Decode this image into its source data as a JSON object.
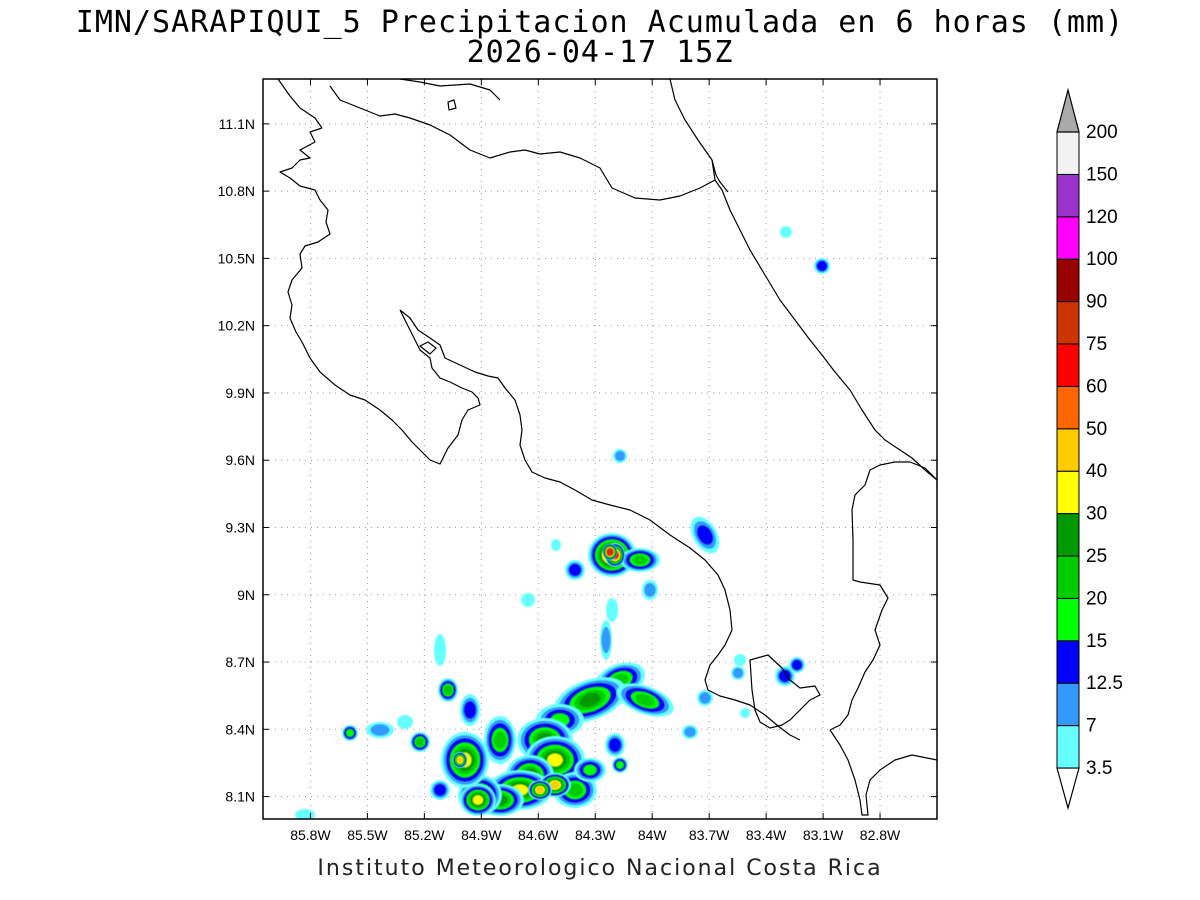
{
  "title": {
    "line1": "IMN/SARAPIQUI_5 Precipitacion Acumulada en 6 horas (mm)",
    "line2": "2026-04-17 15Z"
  },
  "footer": "Instituto Meteorologico Nacional Costa Rica",
  "map": {
    "lon_range": [
      -86.05,
      -82.5
    ],
    "lat_range": [
      8.0,
      11.3
    ],
    "lat_ticks": [
      "11.1N",
      "10.8N",
      "10.5N",
      "10.2N",
      "9.9N",
      "9.6N",
      "9.3N",
      "9N",
      "8.7N",
      "8.4N",
      "8.1N"
    ],
    "lat_values": [
      11.1,
      10.8,
      10.5,
      10.2,
      9.9,
      9.6,
      9.3,
      9.0,
      8.7,
      8.4,
      8.1
    ],
    "lon_ticks": [
      "85.8W",
      "85.5W",
      "85.2W",
      "84.9W",
      "84.6W",
      "84.3W",
      "84W",
      "83.7W",
      "83.4W",
      "83.1W",
      "82.8W"
    ],
    "lon_values": [
      -85.8,
      -85.5,
      -85.2,
      -84.9,
      -84.6,
      -84.3,
      -84.0,
      -83.7,
      -83.4,
      -83.1,
      -82.8
    ],
    "grid": true
  },
  "colorbar": {
    "labels": [
      "3.5",
      "7",
      "12.5",
      "15",
      "20",
      "25",
      "30",
      "40",
      "50",
      "60",
      "75",
      "90",
      "100",
      "120",
      "150",
      "200"
    ],
    "colors": [
      "#66ffff",
      "#3399ff",
      "#0000ff",
      "#00ff00",
      "#00cc00",
      "#009900",
      "#ffff00",
      "#ffcc00",
      "#ff6600",
      "#ff0000",
      "#cc3300",
      "#990000",
      "#ff00ff",
      "#9933cc",
      "#f2f2f2",
      "#aaaaaa"
    ]
  }
}
